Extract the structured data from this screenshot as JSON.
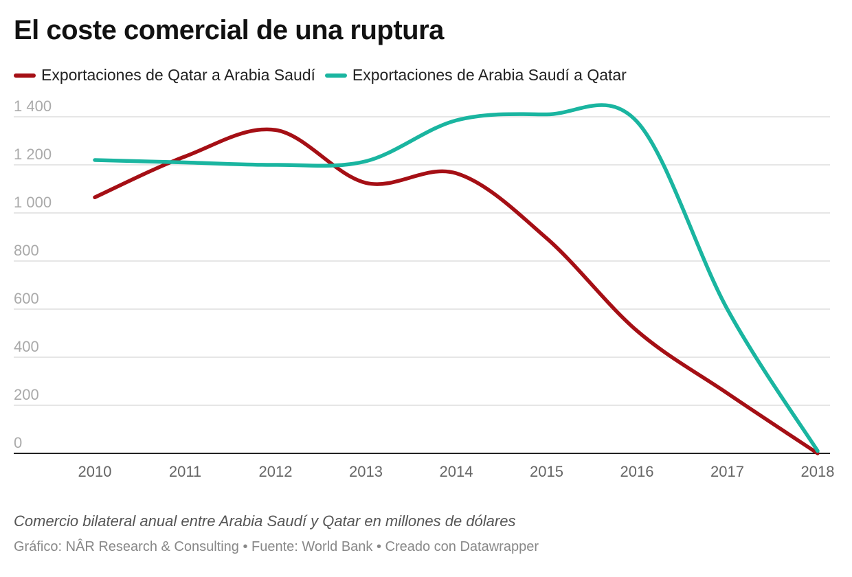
{
  "chart_data": {
    "type": "line",
    "title": "El coste comercial de una ruptura",
    "x": [
      2010,
      2011,
      2012,
      2013,
      2014,
      2015,
      2016,
      2017,
      2018
    ],
    "x_tick_labels": [
      "2010",
      "2011",
      "2012",
      "2013",
      "2014",
      "2015",
      "2016",
      "2017",
      "2018"
    ],
    "y_ticks": [
      0,
      200,
      400,
      600,
      800,
      1000,
      1200,
      1400
    ],
    "y_tick_labels": [
      "0",
      "200",
      "400",
      "600",
      "800",
      "1 000",
      "1 200",
      "1 400"
    ],
    "ylim": [
      0,
      1400
    ],
    "grid": true,
    "legend_position": "top-left",
    "series": [
      {
        "name": "Exportaciones de Qatar a Arabia Saudí",
        "color": "#a50f15",
        "values": [
          1065,
          1235,
          1345,
          1125,
          1165,
          895,
          510,
          250,
          0
        ]
      },
      {
        "name": "Exportaciones de Arabia Saudí a Qatar",
        "color": "#1ab5a0",
        "values": [
          1220,
          1210,
          1200,
          1215,
          1385,
          1410,
          1380,
          600,
          10
        ]
      }
    ],
    "caption": "Comercio bilateral anual entre Arabia Saudí y Qatar en millones de dólares",
    "source": "Gráfico: NÂR Research & Consulting • Fuente: World Bank • Creado con Datawrapper"
  }
}
